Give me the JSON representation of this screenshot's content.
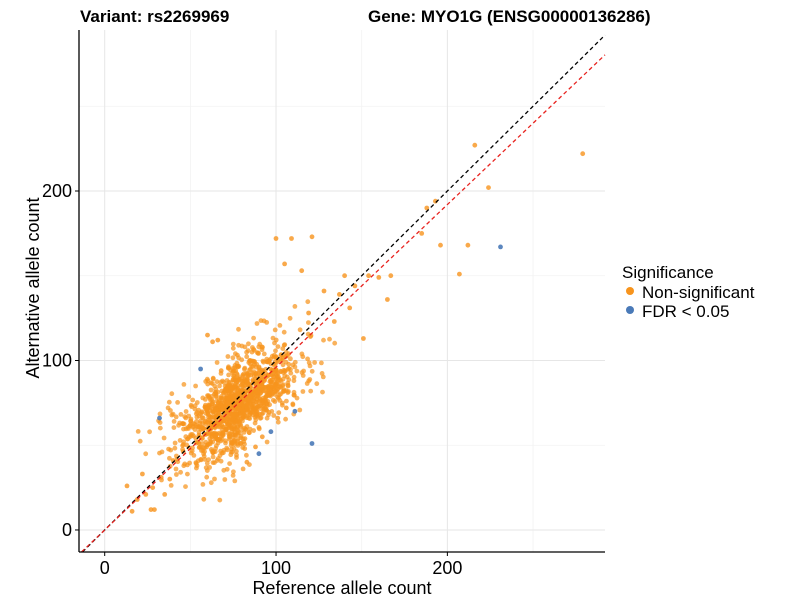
{
  "chart_data": {
    "type": "scatter",
    "title_left": "Variant: rs2269969",
    "title_right": "Gene: MYO1G (ENSG00000136286)",
    "xlabel": "Reference allele count",
    "ylabel": "Alternative allele count",
    "xlim": [
      -15,
      292
    ],
    "ylim": [
      -13,
      295
    ],
    "xticks": [
      0,
      100,
      200
    ],
    "yticks": [
      0,
      100,
      200
    ],
    "grid": true,
    "legend": {
      "title": "Significance",
      "position": "right",
      "entries": [
        {
          "label": "Non-significant",
          "color": "#f7941d"
        },
        {
          "label": "FDR < 0.05",
          "color": "#4a7ab8"
        }
      ]
    },
    "reference_lines": [
      {
        "name": "identity",
        "slope": 1.0,
        "intercept": 0,
        "color": "#000000",
        "style": "dashed"
      },
      {
        "name": "fit",
        "slope": 0.96,
        "intercept": 0,
        "color": "#e8231f",
        "style": "dashed"
      }
    ],
    "series": [
      {
        "name": "FDR < 0.05",
        "color": "#4a7ab8",
        "points": [
          [
            56,
            95
          ],
          [
            32,
            66
          ],
          [
            97,
            58
          ],
          [
            111,
            70
          ],
          [
            90,
            45
          ],
          [
            121,
            51
          ],
          [
            231,
            167
          ]
        ]
      },
      {
        "name": "Non-significant",
        "color": "#f7941d",
        "outliers": [
          [
            216,
            227
          ],
          [
            279,
            222
          ],
          [
            224,
            202
          ],
          [
            193,
            194
          ],
          [
            212,
            168
          ],
          [
            196,
            168
          ],
          [
            207,
            151
          ],
          [
            185,
            175
          ],
          [
            121,
            173
          ],
          [
            109,
            172
          ],
          [
            188,
            190
          ],
          [
            167,
            150
          ],
          [
            160,
            149
          ],
          [
            154,
            150
          ],
          [
            140,
            150
          ],
          [
            165,
            136
          ],
          [
            146,
            144
          ],
          [
            137,
            139
          ],
          [
            151,
            113
          ],
          [
            13,
            26
          ],
          [
            16,
            11
          ],
          [
            19,
            18
          ],
          [
            22,
            33
          ],
          [
            24,
            21
          ],
          [
            27,
            12
          ],
          [
            29,
            12
          ],
          [
            28,
            25
          ],
          [
            33,
            31
          ],
          [
            35,
            21
          ],
          [
            38,
            30
          ],
          [
            40,
            41
          ],
          [
            100,
            172
          ],
          [
            105,
            157
          ],
          [
            115,
            153
          ],
          [
            119,
            128
          ],
          [
            128,
            141
          ],
          [
            134,
            123
          ],
          [
            143,
            131
          ],
          [
            60,
            115
          ],
          [
            63,
            111
          ],
          [
            66,
            112
          ],
          [
            68,
            94
          ],
          [
            96,
            100
          ],
          [
            101,
            66
          ],
          [
            106,
            72
          ],
          [
            83,
            40
          ],
          [
            88,
            49
          ],
          [
            92,
            55
          ],
          [
            55,
            56
          ]
        ],
        "cloud": {
          "n": 1300,
          "center": [
            78,
            75
          ],
          "sd_major": 22,
          "sd_minor": 8,
          "angle_deg": 45
        }
      }
    ]
  }
}
